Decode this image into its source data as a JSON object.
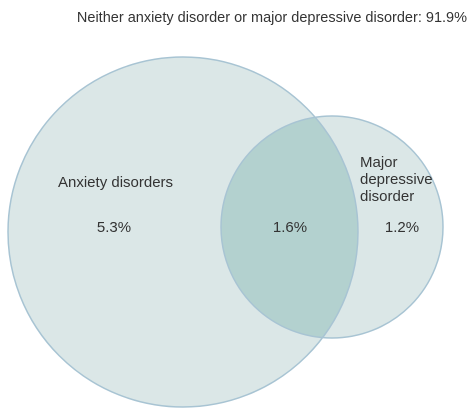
{
  "diagram": {
    "header_text": "Neither anxiety disorder or major depressive disorder: 91.9%",
    "sets": {
      "anxiety": {
        "label": "Anxiety disorders",
        "only_value": "5.3%",
        "fill": "#dbe7e7",
        "stroke": "#a8c4d3"
      },
      "depressive": {
        "label_lines": [
          "Major",
          "depressive",
          "disorder"
        ],
        "only_value": "1.2%",
        "fill": "#dbe7e7",
        "stroke": "#a8c4d3"
      }
    },
    "overlap": {
      "value": "1.6%",
      "fill": "#b3d1cf"
    }
  }
}
